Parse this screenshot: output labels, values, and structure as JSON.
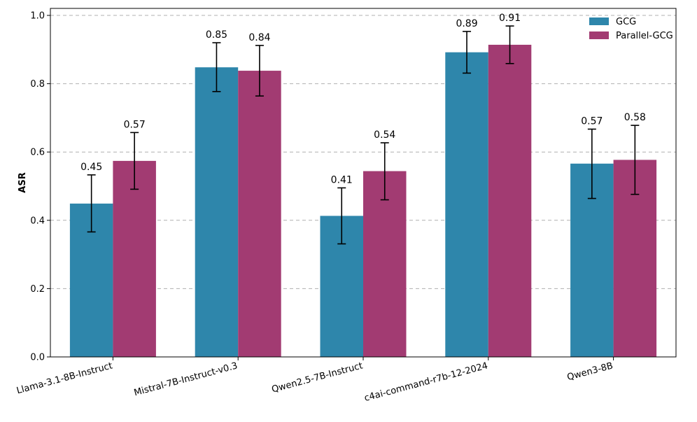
{
  "chart_data": {
    "type": "bar",
    "title": "",
    "xlabel": "",
    "ylabel": "ASR",
    "ylim": [
      0,
      1.0
    ],
    "yticks": [
      "0.0",
      "0.2",
      "0.4",
      "0.6",
      "0.8",
      "1.0"
    ],
    "grid": true,
    "legend_position": "top-right",
    "categories": [
      "Llama-3.1-8B-Instruct",
      "Mistral-7B-Instruct-v0.3",
      "Qwen2.5-7B-Instruct",
      "c4ai-command-r7b-12-2024",
      "Qwen3-8B"
    ],
    "series": [
      {
        "name": "GCG",
        "color": "#2e86ab",
        "values": [
          0.449,
          0.848,
          0.413,
          0.892,
          0.566
        ],
        "error_low": [
          0.366,
          0.777,
          0.331,
          0.831,
          0.464
        ],
        "error_high": [
          0.533,
          0.92,
          0.495,
          0.953,
          0.667
        ],
        "labels": [
          "0.45",
          "0.85",
          "0.41",
          "0.89",
          "0.57"
        ]
      },
      {
        "name": "Parallel-GCG",
        "color": "#a23b72",
        "values": [
          0.574,
          0.838,
          0.544,
          0.914,
          0.577
        ],
        "error_low": [
          0.491,
          0.764,
          0.46,
          0.859,
          0.476
        ],
        "error_high": [
          0.657,
          0.912,
          0.627,
          0.969,
          0.678
        ],
        "labels": [
          "0.57",
          "0.84",
          "0.54",
          "0.91",
          "0.58"
        ]
      }
    ]
  }
}
